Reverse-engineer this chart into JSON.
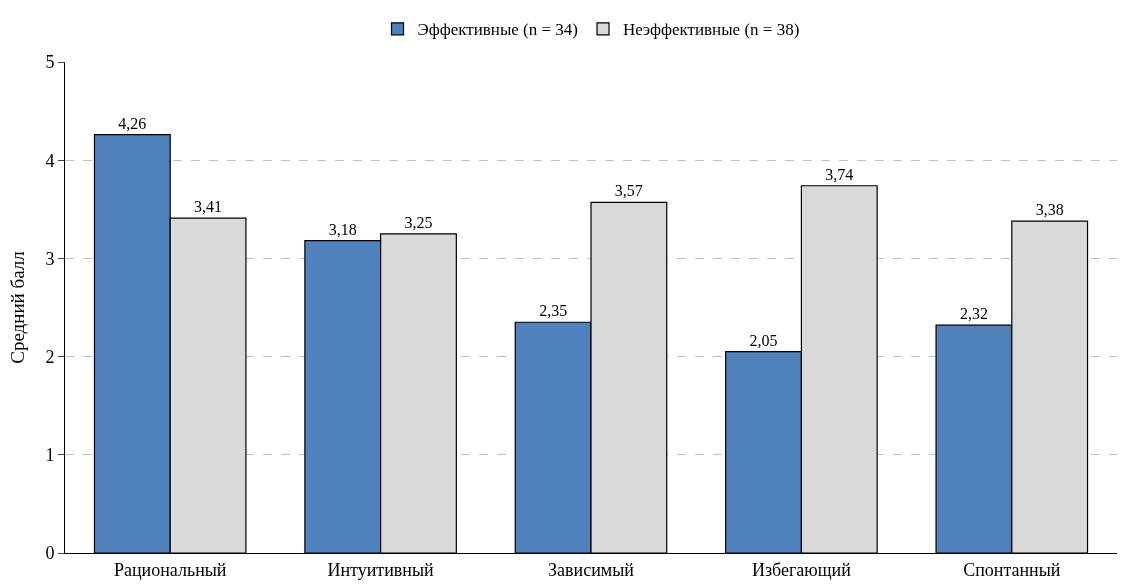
{
  "chart_data": {
    "type": "bar",
    "ylabel": "Средний балл",
    "categories": [
      "Рациональный",
      "Интуитивный",
      "Зависимый",
      "Избегающий",
      "Спонтанный"
    ],
    "series": [
      {
        "name": "Эффективные (n = 34)",
        "color": "#4f81bd",
        "values": [
          4.26,
          3.18,
          2.35,
          2.05,
          2.32
        ],
        "value_labels": [
          "4,26",
          "3,18",
          "2,35",
          "2,05",
          "2,32"
        ]
      },
      {
        "name": "Неэффективные (n = 38)",
        "color": "#d9d9d9",
        "values": [
          3.41,
          3.25,
          3.57,
          3.74,
          3.38
        ],
        "value_labels": [
          "3,41",
          "3,25",
          "3,57",
          "3,74",
          "3,38"
        ]
      }
    ],
    "ylim": [
      0,
      5
    ],
    "yticks": [
      0,
      1,
      2,
      3,
      4,
      5
    ],
    "grid": "y",
    "legend": "top"
  }
}
